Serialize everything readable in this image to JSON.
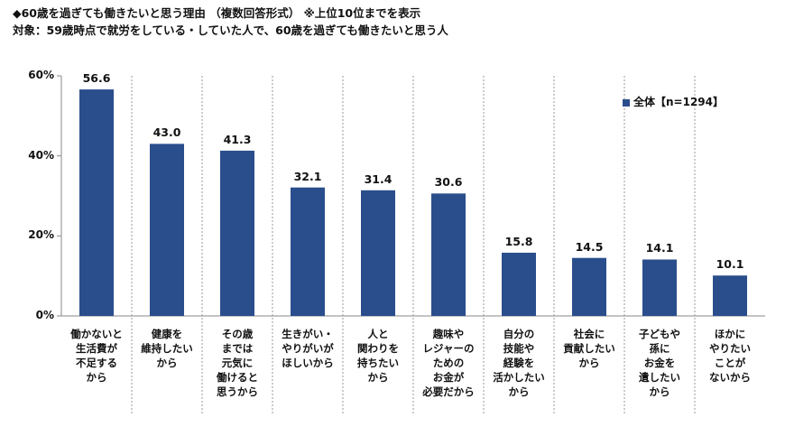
{
  "title_line1": "◆60歳を過ぎても働きたいと思う理由 （複数回答形式） ※上位10位までを表示",
  "title_line2": "対象：59歳時点で就労をしている・していた人で、60歳を過ぎても働きたいと思う人",
  "chart_data": {
    "type": "bar",
    "categories": [
      "働かないと\n生活費が\n不足する\nから",
      "健康を\n維持したい\nから",
      "その歳\nまでは\n元気に\n働けると\n思うから",
      "生きがい・\nやりがいが\nほしいから",
      "人と\n関わりを\n持ちたい\nから",
      "趣味や\nレジャーの\nための\nお金が\n必要だから",
      "自分の\n技能や\n経験を\n活かしたい\nから",
      "社会に\n貢献したい\nから",
      "子どもや\n孫に\nお金を\n遺したい\nから",
      "ほかに\nやりたい\nことが\nないから"
    ],
    "series": [
      {
        "name": "全体【n=1294】",
        "values": [
          56.6,
          43.0,
          41.3,
          32.1,
          31.4,
          30.6,
          15.8,
          14.5,
          14.1,
          10.1
        ]
      }
    ],
    "value_labels": [
      "56.6",
      "43.0",
      "41.3",
      "32.1",
      "31.4",
      "30.6",
      "15.8",
      "14.5",
      "14.1",
      "10.1"
    ],
    "ylim": [
      0,
      60
    ],
    "yticks": [
      0,
      20,
      40,
      60
    ],
    "ytick_labels": [
      "0%",
      "20%",
      "40%",
      "60%"
    ],
    "legend_position": "top-right",
    "bar_color": "#2a4e8c",
    "grid": "vertical separators"
  }
}
